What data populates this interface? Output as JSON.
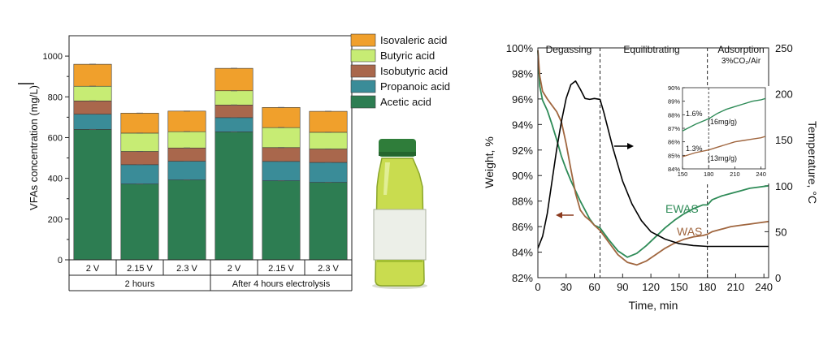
{
  "chart_data": [
    {
      "type": "bar",
      "stacked": true,
      "ylabel": "VFAs concentration (mg/L)",
      "ylim": [
        0,
        1100
      ],
      "yticks": [
        0,
        200,
        400,
        600,
        800,
        1000
      ],
      "categories": [
        "2 V",
        "2.15 V",
        "2.3 V",
        "2 V",
        "2.15 V",
        "2.3 V"
      ],
      "groups": [
        {
          "label": "2 hours",
          "count": 3
        },
        {
          "label": "After 4 hours electrolysis",
          "count": 3
        }
      ],
      "series": [
        {
          "name": "Acetic acid",
          "color": "#2d7d52",
          "values": [
            640,
            372,
            392,
            628,
            388,
            380
          ]
        },
        {
          "name": "Propanoic acid",
          "color": "#3a8c98",
          "values": [
            75,
            95,
            92,
            70,
            95,
            98
          ]
        },
        {
          "name": "Isobutyric acid",
          "color": "#a9674c",
          "values": [
            65,
            65,
            65,
            62,
            68,
            66
          ]
        },
        {
          "name": "Butyric acid",
          "color": "#c7ec74",
          "values": [
            72,
            90,
            80,
            70,
            98,
            82
          ]
        },
        {
          "name": "Isovaleric acid",
          "color": "#f0a02c",
          "values": [
            108,
            98,
            101,
            110,
            99,
            103
          ]
        }
      ],
      "totals": [
        960,
        720,
        730,
        940,
        748,
        729
      ]
    },
    {
      "type": "line",
      "xlabel": "Time, min",
      "ylabel": "Weight, %",
      "y2label": "Temperature, °C",
      "xlim": [
        0,
        245
      ],
      "xticks": [
        0,
        30,
        60,
        90,
        120,
        150,
        180,
        210,
        240
      ],
      "ylim": [
        82,
        100
      ],
      "yticks": [
        "82%",
        "84%",
        "86%",
        "88%",
        "90%",
        "92%",
        "94%",
        "96%",
        "98%",
        "100%"
      ],
      "y2lim": [
        0,
        250
      ],
      "y2ticks": [
        0,
        50,
        100,
        150,
        200,
        250
      ],
      "phases": [
        {
          "label": "Degassing"
        },
        {
          "label": "Equilibtrating"
        },
        {
          "label": "Adsorption",
          "sublabel": "3%CO₂/Air"
        }
      ],
      "phase_boundaries": [
        66,
        180
      ],
      "series": [
        {
          "name": "EWAS",
          "color": "#2e8b57",
          "x": [
            0,
            2,
            5,
            10,
            15,
            20,
            25,
            30,
            35,
            40,
            45,
            50,
            55,
            60,
            66,
            75,
            85,
            95,
            105,
            115,
            125,
            135,
            145,
            155,
            165,
            175,
            180,
            185,
            195,
            205,
            215,
            225,
            235,
            245
          ],
          "y": [
            99.8,
            97.0,
            95.9,
            95.1,
            94.0,
            92.8,
            91.5,
            90.5,
            89.6,
            88.8,
            88.0,
            87.3,
            86.6,
            86.1,
            85.9,
            85.0,
            84.1,
            83.6,
            83.9,
            84.5,
            85.2,
            85.9,
            86.5,
            87.0,
            87.4,
            87.7,
            87.7,
            88.1,
            88.4,
            88.6,
            88.8,
            89.0,
            89.1,
            89.2
          ]
        },
        {
          "name": "WAS",
          "color": "#a0663f",
          "x": [
            0,
            2,
            5,
            10,
            15,
            20,
            25,
            30,
            35,
            40,
            45,
            50,
            55,
            60,
            66,
            75,
            85,
            95,
            105,
            115,
            125,
            135,
            145,
            155,
            165,
            175,
            180,
            185,
            195,
            205,
            215,
            225,
            235,
            245
          ],
          "y": [
            99.8,
            97.8,
            96.6,
            96.0,
            95.5,
            95.0,
            94.2,
            92.5,
            90.5,
            88.6,
            87.3,
            86.8,
            86.5,
            86.1,
            85.7,
            84.8,
            83.8,
            83.2,
            83.0,
            83.3,
            83.8,
            84.3,
            84.7,
            85.0,
            85.2,
            85.3,
            85.4,
            85.6,
            85.8,
            86.0,
            86.1,
            86.2,
            86.3,
            86.4
          ]
        },
        {
          "name": "Temperature",
          "color": "#000000",
          "axis": "y2",
          "x": [
            0,
            5,
            10,
            15,
            20,
            25,
            30,
            35,
            40,
            45,
            50,
            55,
            60,
            66,
            70,
            80,
            90,
            100,
            110,
            120,
            135,
            150,
            165,
            180,
            200,
            220,
            245
          ],
          "y": [
            32,
            45,
            70,
            105,
            140,
            170,
            195,
            210,
            214,
            205,
            195,
            194,
            195,
            194,
            180,
            140,
            105,
            80,
            62,
            50,
            42,
            37,
            35,
            34,
            34,
            34,
            34
          ]
        }
      ],
      "annotations": [
        "EWAS",
        "WAS"
      ],
      "inset": {
        "xlim": [
          150,
          245
        ],
        "xticks": [
          150,
          180,
          210,
          240
        ],
        "ylim": [
          84,
          90
        ],
        "yticks": [
          "84%",
          "85%",
          "86%",
          "87%",
          "88%",
          "89%",
          "90%"
        ],
        "labels": [
          "1.6%",
          "(16mg/g)",
          "1.3%",
          "(13mg/g)"
        ],
        "series": [
          {
            "name": "EWAS",
            "color": "#2e8b57",
            "x": [
              150,
              165,
              180,
              190,
              200,
              210,
              220,
              230,
              240,
              245
            ],
            "y": [
              86.8,
              87.3,
              87.7,
              88.1,
              88.4,
              88.6,
              88.8,
              89.0,
              89.1,
              89.2
            ]
          },
          {
            "name": "WAS",
            "color": "#a0663f",
            "x": [
              150,
              165,
              180,
              190,
              200,
              210,
              220,
              230,
              240,
              245
            ],
            "y": [
              84.9,
              85.2,
              85.4,
              85.6,
              85.8,
              86.0,
              86.1,
              86.2,
              86.3,
              86.4
            ]
          }
        ]
      }
    }
  ]
}
